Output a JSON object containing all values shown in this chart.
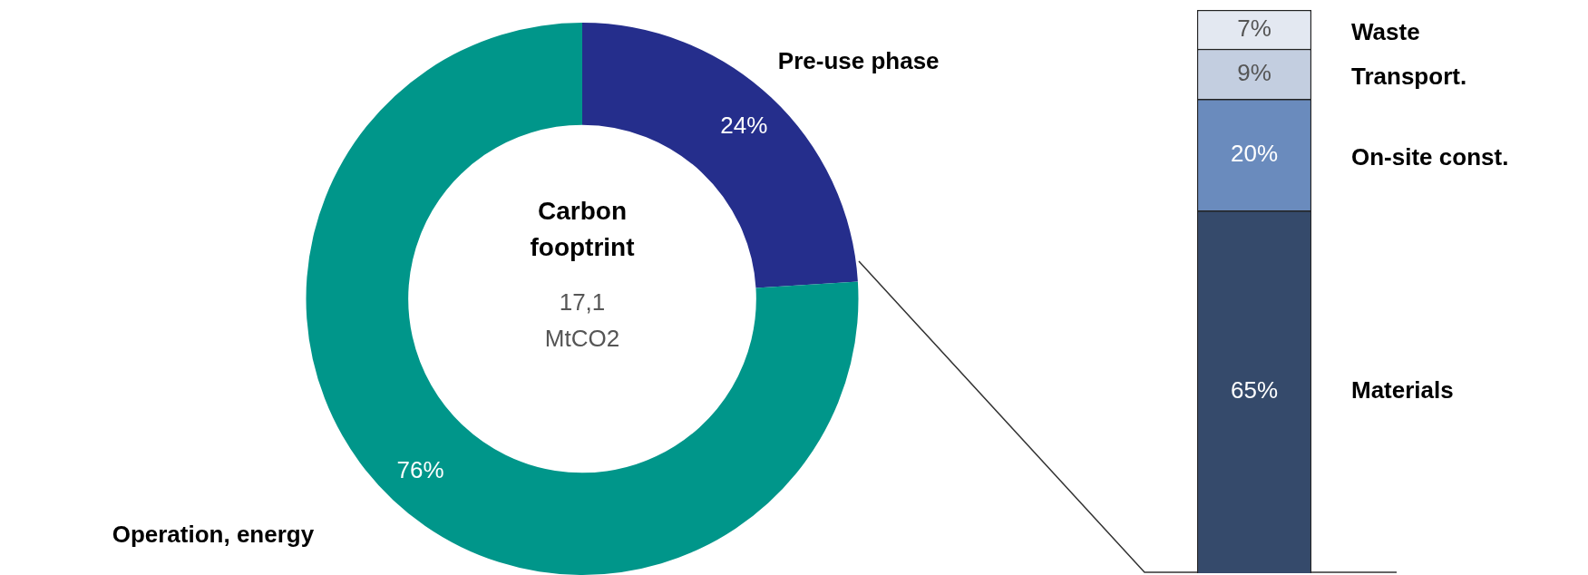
{
  "chart_data": [
    {
      "type": "donut",
      "categories": [
        "Pre-use phase",
        "Operation, energy"
      ],
      "values": [
        24,
        76
      ],
      "colors": [
        "#252e8c",
        "#00968a"
      ],
      "value_labels": [
        "24%",
        "76%"
      ],
      "legend": false,
      "annotations": [
        "Carbon fooptrint",
        "17,1 MtCO2"
      ]
    },
    {
      "type": "bar",
      "stacked": true,
      "categories": [
        null
      ],
      "legend": false,
      "series": [
        {
          "name": "Materials",
          "color": "#354a6b",
          "values": [
            65
          ],
          "value_labels": [
            "65%"
          ]
        },
        {
          "name": "On-site const.",
          "color": "#6a8bbd",
          "values": [
            20
          ],
          "value_labels": [
            "20%"
          ]
        },
        {
          "name": "Transport.",
          "color": "#c3cee0",
          "values": [
            9
          ],
          "value_labels": [
            "9%"
          ]
        },
        {
          "name": "Waste",
          "color": "#e3e8f1",
          "values": [
            7
          ],
          "value_labels": [
            "7%"
          ]
        }
      ]
    }
  ]
}
